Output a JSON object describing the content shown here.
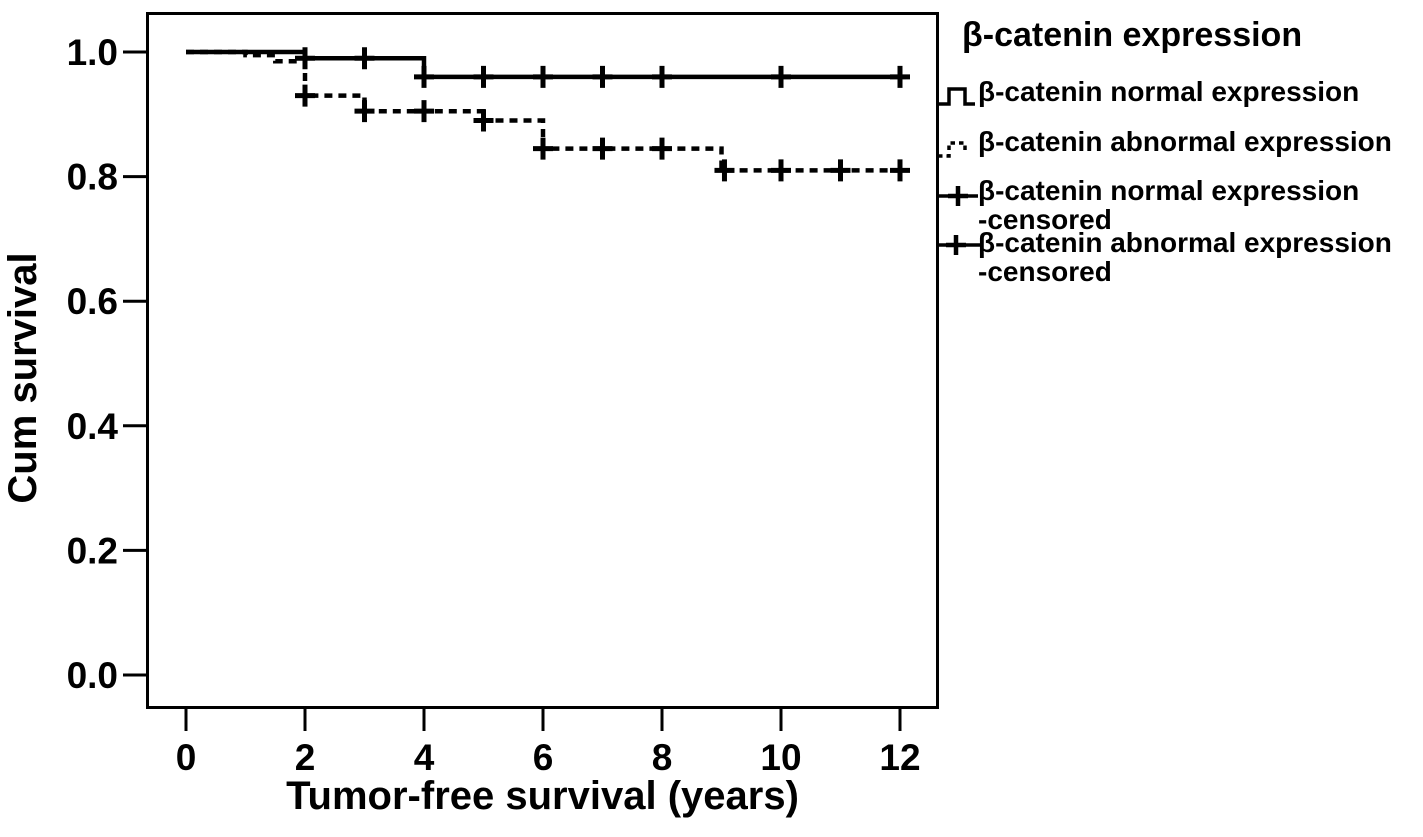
{
  "figure": {
    "background": "#ffffff",
    "ink": "#000000"
  },
  "chart_data": {
    "type": "line",
    "subtype": "kaplan_meier_step",
    "title": "",
    "xlabel": "Tumor-free survival (years)",
    "ylabel": "Cum survival",
    "xlim": [
      -0.65,
      12.65
    ],
    "ylim": [
      -0.05,
      1.06
    ],
    "grid": false,
    "legend_position": "right",
    "xticks": [
      0,
      2,
      4,
      6,
      8,
      10,
      12
    ],
    "x_tick_labels": [
      "0",
      "2",
      "4",
      "6",
      "8",
      "10",
      "12"
    ],
    "yticks": [
      0.0,
      0.2,
      0.4,
      0.6,
      0.8,
      1.0
    ],
    "y_tick_labels": [
      "0.0",
      "0.2",
      "0.4",
      "0.6",
      "0.8",
      "1.0"
    ],
    "series": [
      {
        "name": "β-catenin abnormal expression",
        "line_style": "dashed",
        "color": "#000000",
        "steps": [
          [
            0,
            1.0
          ],
          [
            1,
            1.0
          ],
          [
            1,
            0.995
          ],
          [
            1.5,
            0.995
          ],
          [
            1.5,
            0.985
          ],
          [
            2,
            0.985
          ],
          [
            2,
            0.93
          ],
          [
            3,
            0.93
          ],
          [
            3,
            0.905
          ],
          [
            5,
            0.905
          ],
          [
            5,
            0.89
          ],
          [
            6,
            0.89
          ],
          [
            6,
            0.845
          ],
          [
            9,
            0.845
          ],
          [
            9,
            0.81
          ],
          [
            12.05,
            0.81
          ]
        ],
        "censored": [
          [
            2,
            0.93
          ],
          [
            3,
            0.905
          ],
          [
            4,
            0.905
          ],
          [
            5,
            0.89
          ],
          [
            6,
            0.845
          ],
          [
            7,
            0.845
          ],
          [
            8,
            0.845
          ],
          [
            9.05,
            0.81
          ],
          [
            10,
            0.81
          ],
          [
            11,
            0.81
          ],
          [
            12,
            0.81
          ]
        ]
      },
      {
        "name": "β-catenin normal expression",
        "line_style": "solid",
        "color": "#000000",
        "steps": [
          [
            0,
            1.0
          ],
          [
            2,
            1.0
          ],
          [
            2,
            0.99
          ],
          [
            4,
            0.99
          ],
          [
            4,
            0.96
          ],
          [
            12.1,
            0.96
          ]
        ],
        "censored": [
          [
            2,
            0.99
          ],
          [
            3,
            0.99
          ],
          [
            4,
            0.96
          ],
          [
            5,
            0.96
          ],
          [
            6,
            0.96
          ],
          [
            7,
            0.96
          ],
          [
            8,
            0.96
          ],
          [
            10,
            0.96
          ],
          [
            12,
            0.96
          ]
        ]
      }
    ]
  },
  "legend": {
    "title": "β-catenin expression",
    "items": [
      {
        "label": "β-catenin normal expression",
        "label2": "",
        "symbol": "solid-step-line"
      },
      {
        "label": "β-catenin abnormal expression",
        "label2": "",
        "symbol": "dashed-step-line"
      },
      {
        "label": "β-catenin normal expression",
        "label2": "-censored",
        "symbol": "censored-plus"
      },
      {
        "label": "β-catenin abnormal expression",
        "label2": "-censored",
        "symbol": "censored-plus"
      }
    ]
  }
}
